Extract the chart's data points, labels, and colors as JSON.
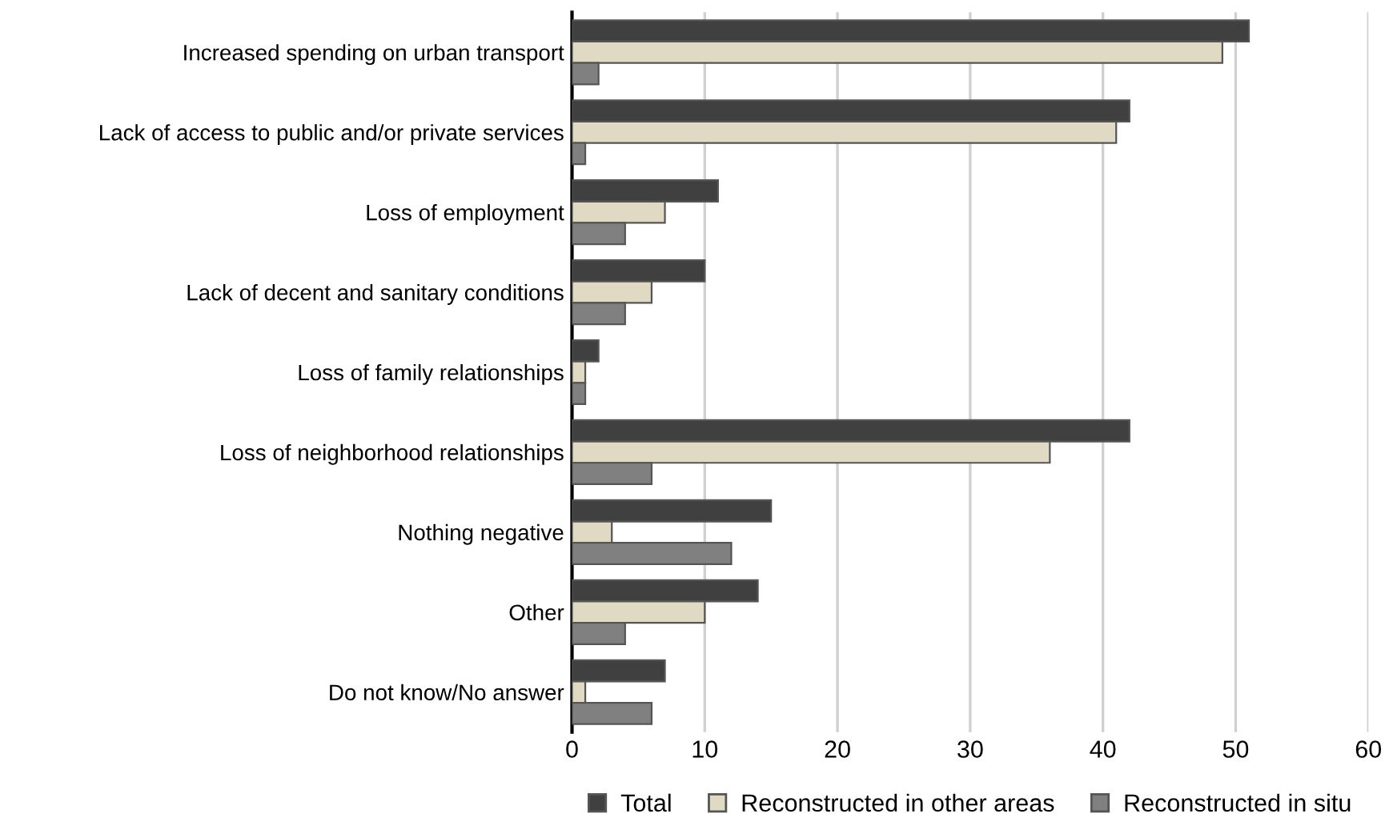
{
  "chart_data": {
    "type": "bar",
    "orientation": "horizontal",
    "categories": [
      "Increased spending on urban transport",
      "Lack of access to public and/or private services",
      "Loss of employment",
      "Lack of decent and sanitary conditions",
      "Loss of family relationships",
      "Loss of neighborhood relationships",
      "Nothing negative",
      "Other",
      "Do not know/No answer"
    ],
    "series": [
      {
        "name": "Total",
        "color": "#404040",
        "values": [
          51,
          42,
          11,
          10,
          2,
          42,
          15,
          14,
          7
        ]
      },
      {
        "name": "Reconstructed in other areas",
        "color": "#e0dac4",
        "values": [
          49,
          41,
          7,
          6,
          1,
          36,
          3,
          10,
          1
        ]
      },
      {
        "name": "Reconstructed in situ",
        "color": "#808080",
        "values": [
          2,
          1,
          4,
          4,
          1,
          6,
          12,
          4,
          6
        ]
      }
    ],
    "xlim": [
      0,
      60
    ],
    "xticks": [
      0,
      10,
      20,
      30,
      40,
      50,
      60
    ],
    "grid": "x",
    "legend": "bottom"
  }
}
